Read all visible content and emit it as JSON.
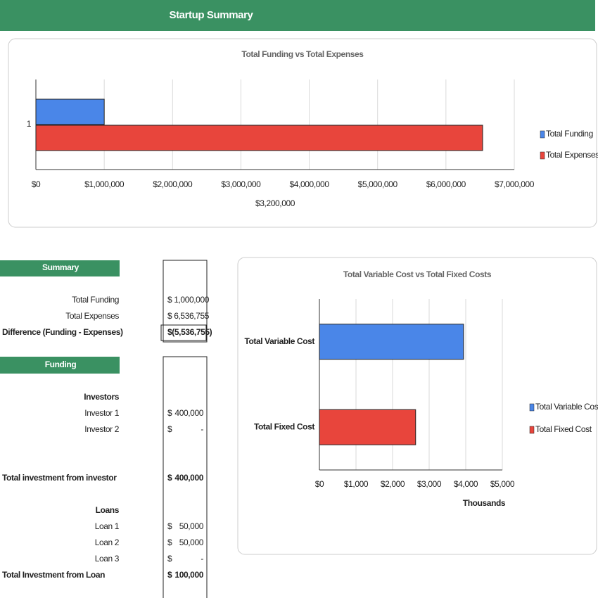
{
  "header": {
    "title": "Startup Summary"
  },
  "chart_data": [
    {
      "type": "bar",
      "orientation": "horizontal",
      "title": "Total Funding vs Total Expenses",
      "categories": [
        "1"
      ],
      "series": [
        {
          "name": "Total Funding",
          "color": "#4a86e8",
          "values": [
            1000000
          ]
        },
        {
          "name": "Total Expenses",
          "color": "#e8453c",
          "values": [
            6536755
          ]
        }
      ],
      "xlim": [
        0,
        7000000
      ],
      "xticks": [
        {
          "value": 0,
          "label": "$0"
        },
        {
          "value": 1000000,
          "label": "$1,000,000"
        },
        {
          "value": 2000000,
          "label": "$2,000,000"
        },
        {
          "value": 3000000,
          "label": "$3,000,000"
        },
        {
          "value": 4000000,
          "label": "$4,000,000"
        },
        {
          "value": 5000000,
          "label": "$5,000,000"
        },
        {
          "value": 6000000,
          "label": "$6,000,000"
        },
        {
          "value": 7000000,
          "label": "$7,000,000"
        }
      ],
      "x_label": "$3,200,000",
      "grid": true,
      "legend": "right"
    },
    {
      "type": "bar",
      "orientation": "horizontal",
      "title": "Total Variable Cost vs Total Fixed Costs",
      "categories": [
        "Total Variable Cost",
        "Total Fixed Cost"
      ],
      "series": [
        {
          "name": "Total Variable Cost",
          "color": "#4a86e8",
          "values": [
            3940,
            null
          ]
        },
        {
          "name": "Total Fixed Cost",
          "color": "#e8453c",
          "values": [
            null,
            2630
          ]
        }
      ],
      "xlim": [
        0,
        5000
      ],
      "xticks": [
        {
          "value": 0,
          "label": "$0"
        },
        {
          "value": 1000,
          "label": "$1,000"
        },
        {
          "value": 2000,
          "label": "$2,000"
        },
        {
          "value": 3000,
          "label": "$3,000"
        },
        {
          "value": 4000,
          "label": "$4,000"
        },
        {
          "value": 5000,
          "label": "$5,000"
        }
      ],
      "x_label": "Thousands",
      "grid": true,
      "legend": "right"
    }
  ],
  "summary": {
    "title": "Summary",
    "rows": [
      {
        "label": "Total Funding",
        "value": "$ 1,000,000"
      },
      {
        "label": "Total Expenses",
        "value": "$ 6,536,755"
      },
      {
        "label": "Difference (Funding - Expenses)",
        "value": "$(5,536,755)"
      }
    ]
  },
  "funding": {
    "title": "Funding",
    "rows": [
      {
        "label": "Investors"
      },
      {
        "label": "Investor 1",
        "currency": "$",
        "amount": "400,000"
      },
      {
        "label": "Investor 2",
        "currency": "$",
        "amount": "-"
      },
      {
        "label": "Total investment from investor",
        "currency": "$",
        "amount": "400,000"
      },
      {
        "label": "Loans"
      },
      {
        "label": "Loan 1",
        "currency": "$",
        "amount": "50,000"
      },
      {
        "label": "Loan 2",
        "currency": "$",
        "amount": "50,000"
      },
      {
        "label": "Loan 3",
        "currency": "$",
        "amount": "-"
      },
      {
        "label": "Total Investment from Loan",
        "currency": "$",
        "amount": "100,000"
      }
    ]
  }
}
